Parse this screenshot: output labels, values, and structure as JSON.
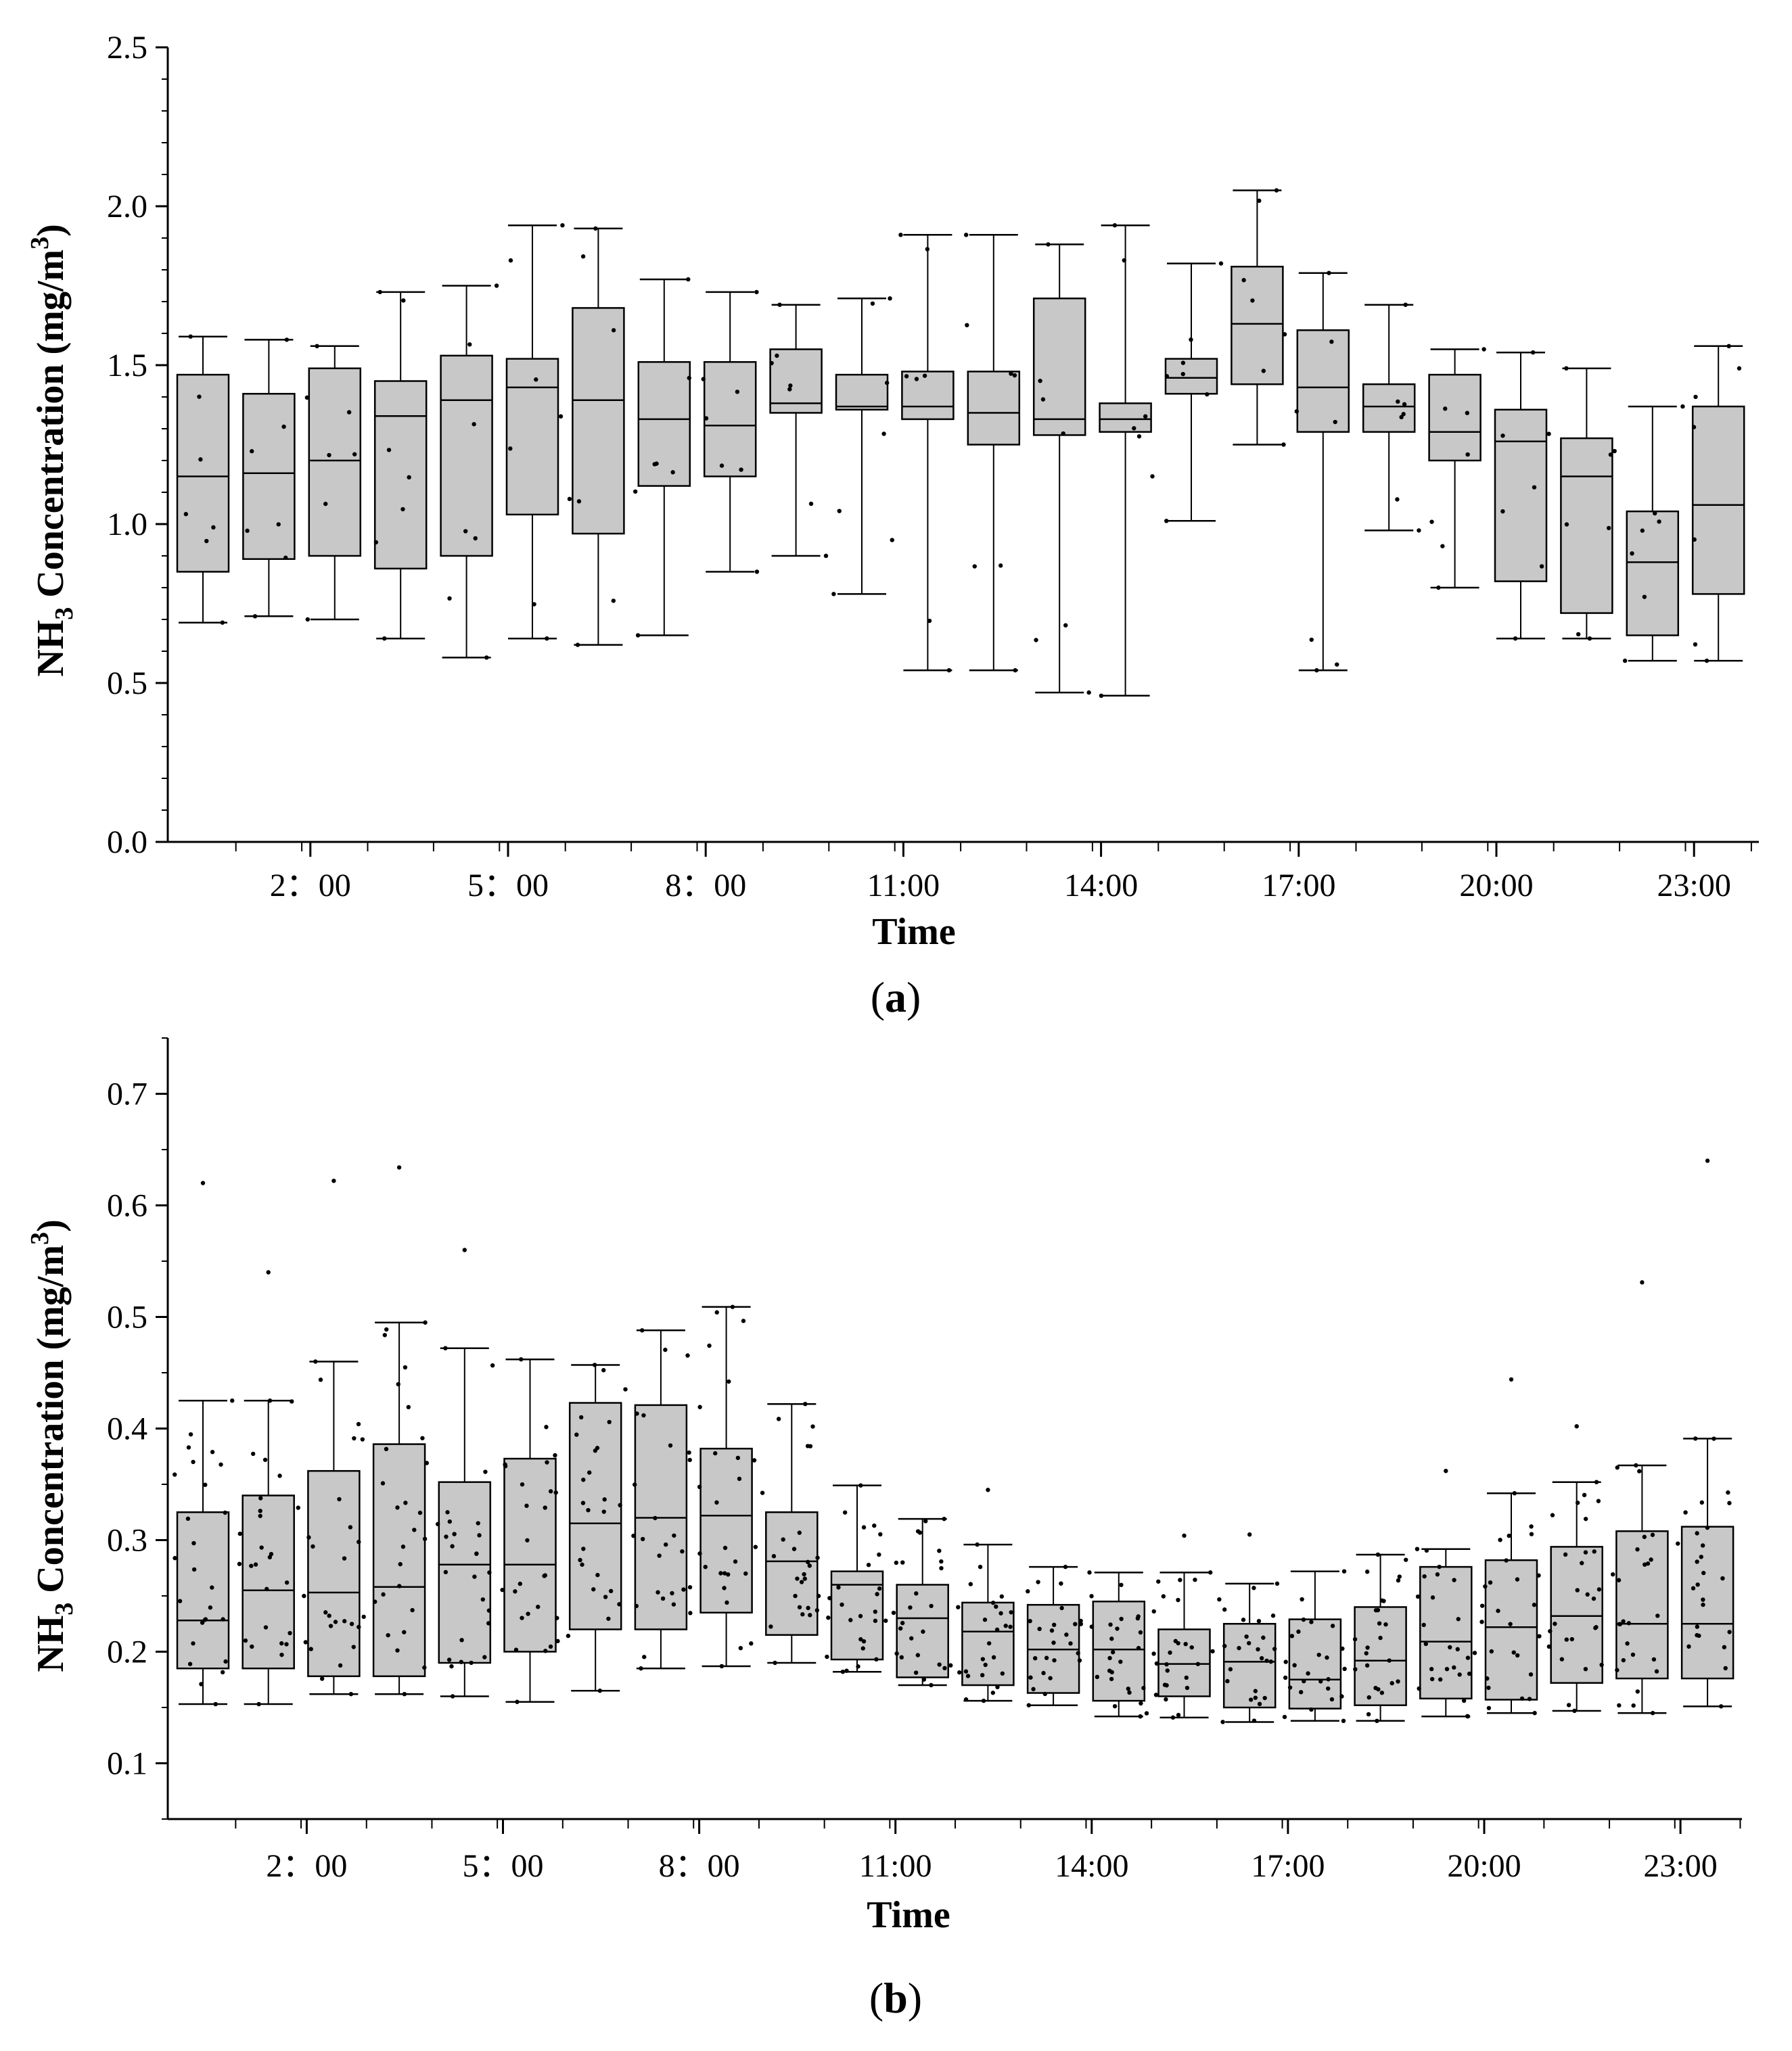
{
  "figure": {
    "panel_a_label": "a",
    "panel_b_label": "b"
  },
  "chart_data": [
    {
      "id": "a",
      "type": "box",
      "title": "",
      "xlabel": "Time",
      "ylabel_main": "NH",
      "ylabel_sub": "3",
      "ylabel_rest": " Concentration (mg/m",
      "ylabel_sup": "3",
      "ylabel_end": ")",
      "ylim": [
        0,
        2.5
      ],
      "yticks": [
        0.0,
        0.5,
        1.0,
        1.5,
        2.0,
        2.5
      ],
      "ytick_labels": [
        "0.0",
        "0.5",
        "1.0",
        "1.5",
        "2.0",
        "2.5"
      ],
      "ytick_step_minor": 0.1,
      "xtick_labels": [
        {
          "hour": 2,
          "label": "2：00"
        },
        {
          "hour": 5,
          "label": "5：00"
        },
        {
          "hour": 8,
          "label": "8：00"
        },
        {
          "hour": 11,
          "label": "11:00"
        },
        {
          "hour": 14,
          "label": "14:00"
        },
        {
          "hour": 17,
          "label": "17:00"
        },
        {
          "hour": 20,
          "label": "20:00"
        },
        {
          "hour": 23,
          "label": "23:00"
        }
      ],
      "box_color": "#c8c8c8",
      "boxes": [
        {
          "hour": 0,
          "whisker_low": 0.69,
          "q1": 0.85,
          "median": 1.15,
          "q3": 1.47,
          "whisker_high": 1.59
        },
        {
          "hour": 1,
          "whisker_low": 0.71,
          "q1": 0.89,
          "median": 1.16,
          "q3": 1.41,
          "whisker_high": 1.58
        },
        {
          "hour": 2,
          "whisker_low": 0.7,
          "q1": 0.9,
          "median": 1.2,
          "q3": 1.49,
          "whisker_high": 1.56
        },
        {
          "hour": 3,
          "whisker_low": 0.64,
          "q1": 0.86,
          "median": 1.34,
          "q3": 1.45,
          "whisker_high": 1.73
        },
        {
          "hour": 4,
          "whisker_low": 0.58,
          "q1": 0.9,
          "median": 1.39,
          "q3": 1.53,
          "whisker_high": 1.75
        },
        {
          "hour": 5,
          "whisker_low": 0.64,
          "q1": 1.03,
          "median": 1.43,
          "q3": 1.52,
          "whisker_high": 1.94
        },
        {
          "hour": 6,
          "whisker_low": 0.62,
          "q1": 0.97,
          "median": 1.39,
          "q3": 1.68,
          "whisker_high": 1.93
        },
        {
          "hour": 7,
          "whisker_low": 0.65,
          "q1": 1.12,
          "median": 1.33,
          "q3": 1.51,
          "whisker_high": 1.77
        },
        {
          "hour": 8,
          "whisker_low": 0.85,
          "q1": 1.15,
          "median": 1.31,
          "q3": 1.51,
          "whisker_high": 1.73
        },
        {
          "hour": 9,
          "whisker_low": 0.9,
          "q1": 1.35,
          "median": 1.38,
          "q3": 1.55,
          "whisker_high": 1.69
        },
        {
          "hour": 10,
          "whisker_low": 0.78,
          "q1": 1.36,
          "median": 1.37,
          "q3": 1.47,
          "whisker_high": 1.71
        },
        {
          "hour": 11,
          "whisker_low": 0.54,
          "q1": 1.33,
          "median": 1.37,
          "q3": 1.48,
          "whisker_high": 1.91
        },
        {
          "hour": 12,
          "whisker_low": 0.54,
          "q1": 1.25,
          "median": 1.35,
          "q3": 1.48,
          "whisker_high": 1.91
        },
        {
          "hour": 13,
          "whisker_low": 0.47,
          "q1": 1.28,
          "median": 1.33,
          "q3": 1.71,
          "whisker_high": 1.88
        },
        {
          "hour": 14,
          "whisker_low": 0.46,
          "q1": 1.29,
          "median": 1.33,
          "q3": 1.38,
          "whisker_high": 1.94
        },
        {
          "hour": 15,
          "whisker_low": 1.01,
          "q1": 1.41,
          "median": 1.46,
          "q3": 1.52,
          "whisker_high": 1.82
        },
        {
          "hour": 16,
          "whisker_low": 1.25,
          "q1": 1.44,
          "median": 1.63,
          "q3": 1.81,
          "whisker_high": 2.05
        },
        {
          "hour": 17,
          "whisker_low": 0.54,
          "q1": 1.29,
          "median": 1.43,
          "q3": 1.61,
          "whisker_high": 1.79
        },
        {
          "hour": 18,
          "whisker_low": 0.98,
          "q1": 1.29,
          "median": 1.37,
          "q3": 1.44,
          "whisker_high": 1.69
        },
        {
          "hour": 19,
          "whisker_low": 0.8,
          "q1": 1.2,
          "median": 1.29,
          "q3": 1.47,
          "whisker_high": 1.55
        },
        {
          "hour": 20,
          "whisker_low": 0.64,
          "q1": 0.82,
          "median": 1.26,
          "q3": 1.36,
          "whisker_high": 1.54
        },
        {
          "hour": 21,
          "whisker_low": 0.64,
          "q1": 0.72,
          "median": 1.15,
          "q3": 1.27,
          "whisker_high": 1.49
        },
        {
          "hour": 22,
          "whisker_low": 0.57,
          "q1": 0.65,
          "median": 0.88,
          "q3": 1.04,
          "whisker_high": 1.37
        },
        {
          "hour": 23,
          "whisker_low": 0.57,
          "q1": 0.78,
          "median": 1.06,
          "q3": 1.37,
          "whisker_high": 1.56
        }
      ],
      "points_per_box": 7
    },
    {
      "id": "b",
      "type": "box",
      "title": "",
      "xlabel": "Time",
      "ylabel_main": "NH",
      "ylabel_sub": "3",
      "ylabel_rest": " Concentration (mg/m",
      "ylabel_sup": "3",
      "ylabel_end": ")",
      "ylim": [
        0.05,
        0.75
      ],
      "yticks": [
        0.1,
        0.2,
        0.3,
        0.4,
        0.5,
        0.6,
        0.7
      ],
      "ytick_labels": [
        "0.1",
        "0.2",
        "0.3",
        "0.4",
        "0.5",
        "0.6",
        "0.7"
      ],
      "ytick_step_minor": 0.05,
      "xtick_labels": [
        {
          "hour": 2,
          "label": "2：00"
        },
        {
          "hour": 5,
          "label": "5：00"
        },
        {
          "hour": 8,
          "label": "8：00"
        },
        {
          "hour": 11,
          "label": "11:00"
        },
        {
          "hour": 14,
          "label": "14:00"
        },
        {
          "hour": 17,
          "label": "17:00"
        },
        {
          "hour": 20,
          "label": "20:00"
        },
        {
          "hour": 23,
          "label": "23:00"
        }
      ],
      "box_color": "#c8c8c8",
      "boxes": [
        {
          "hour": 0,
          "whisker_low": 0.153,
          "q1": 0.185,
          "median": 0.228,
          "q3": 0.325,
          "whisker_high": 0.425,
          "outliers": [
            0.62
          ]
        },
        {
          "hour": 1,
          "whisker_low": 0.153,
          "q1": 0.185,
          "median": 0.255,
          "q3": 0.34,
          "whisker_high": 0.425,
          "outliers": [
            0.54
          ]
        },
        {
          "hour": 2,
          "whisker_low": 0.162,
          "q1": 0.178,
          "median": 0.253,
          "q3": 0.362,
          "whisker_high": 0.46,
          "outliers": [
            0.622
          ]
        },
        {
          "hour": 3,
          "whisker_low": 0.162,
          "q1": 0.178,
          "median": 0.258,
          "q3": 0.386,
          "whisker_high": 0.495,
          "outliers": [
            0.634
          ]
        },
        {
          "hour": 4,
          "whisker_low": 0.16,
          "q1": 0.19,
          "median": 0.278,
          "q3": 0.352,
          "whisker_high": 0.472,
          "outliers": [
            0.56
          ]
        },
        {
          "hour": 5,
          "whisker_low": 0.155,
          "q1": 0.2,
          "median": 0.278,
          "q3": 0.373,
          "whisker_high": 0.462,
          "outliers": []
        },
        {
          "hour": 6,
          "whisker_low": 0.165,
          "q1": 0.22,
          "median": 0.315,
          "q3": 0.423,
          "whisker_high": 0.457,
          "outliers": []
        },
        {
          "hour": 7,
          "whisker_low": 0.185,
          "q1": 0.22,
          "median": 0.32,
          "q3": 0.421,
          "whisker_high": 0.488,
          "outliers": []
        },
        {
          "hour": 8,
          "whisker_low": 0.187,
          "q1": 0.235,
          "median": 0.322,
          "q3": 0.382,
          "whisker_high": 0.509,
          "outliers": []
        },
        {
          "hour": 9,
          "whisker_low": 0.19,
          "q1": 0.215,
          "median": 0.281,
          "q3": 0.325,
          "whisker_high": 0.422,
          "outliers": []
        },
        {
          "hour": 10,
          "whisker_low": 0.182,
          "q1": 0.193,
          "median": 0.26,
          "q3": 0.272,
          "whisker_high": 0.349,
          "outliers": []
        },
        {
          "hour": 11,
          "whisker_low": 0.17,
          "q1": 0.177,
          "median": 0.23,
          "q3": 0.26,
          "whisker_high": 0.319,
          "outliers": []
        },
        {
          "hour": 12,
          "whisker_low": 0.156,
          "q1": 0.17,
          "median": 0.218,
          "q3": 0.244,
          "whisker_high": 0.296,
          "outliers": [
            0.345
          ]
        },
        {
          "hour": 13,
          "whisker_low": 0.152,
          "q1": 0.163,
          "median": 0.202,
          "q3": 0.242,
          "whisker_high": 0.276,
          "outliers": []
        },
        {
          "hour": 14,
          "whisker_low": 0.142,
          "q1": 0.156,
          "median": 0.202,
          "q3": 0.245,
          "whisker_high": 0.271,
          "outliers": []
        },
        {
          "hour": 15,
          "whisker_low": 0.141,
          "q1": 0.16,
          "median": 0.189,
          "q3": 0.22,
          "whisker_high": 0.271,
          "outliers": [
            0.304
          ]
        },
        {
          "hour": 16,
          "whisker_low": 0.137,
          "q1": 0.15,
          "median": 0.191,
          "q3": 0.225,
          "whisker_high": 0.261,
          "outliers": [
            0.305
          ]
        },
        {
          "hour": 17,
          "whisker_low": 0.138,
          "q1": 0.149,
          "median": 0.175,
          "q3": 0.229,
          "whisker_high": 0.272,
          "outliers": []
        },
        {
          "hour": 18,
          "whisker_low": 0.138,
          "q1": 0.152,
          "median": 0.192,
          "q3": 0.24,
          "whisker_high": 0.287,
          "outliers": []
        },
        {
          "hour": 19,
          "whisker_low": 0.142,
          "q1": 0.158,
          "median": 0.209,
          "q3": 0.276,
          "whisker_high": 0.292,
          "outliers": [
            0.362
          ]
        },
        {
          "hour": 20,
          "whisker_low": 0.145,
          "q1": 0.157,
          "median": 0.222,
          "q3": 0.282,
          "whisker_high": 0.342,
          "outliers": [
            0.444
          ]
        },
        {
          "hour": 21,
          "whisker_low": 0.147,
          "q1": 0.172,
          "median": 0.232,
          "q3": 0.294,
          "whisker_high": 0.352,
          "outliers": [
            0.402
          ]
        },
        {
          "hour": 22,
          "whisker_low": 0.145,
          "q1": 0.176,
          "median": 0.225,
          "q3": 0.308,
          "whisker_high": 0.367,
          "outliers": [
            0.531
          ]
        },
        {
          "hour": 23,
          "whisker_low": 0.151,
          "q1": 0.176,
          "median": 0.225,
          "q3": 0.312,
          "whisker_high": 0.391,
          "outliers": [
            0.64
          ]
        }
      ],
      "points_per_box": 26
    }
  ]
}
